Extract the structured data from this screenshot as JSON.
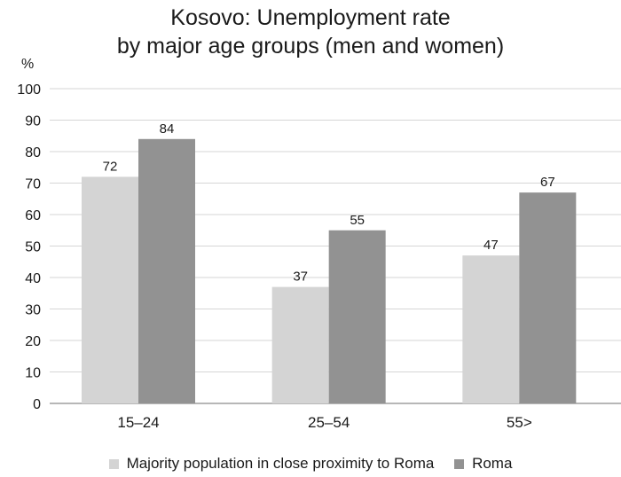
{
  "chart_data": {
    "type": "bar",
    "title_lines": [
      "Kosovo: Unemployment rate",
      "by major age groups (men and women)"
    ],
    "ylabel": "%",
    "ylim": [
      0,
      100
    ],
    "yticks": [
      0,
      10,
      20,
      30,
      40,
      50,
      60,
      70,
      80,
      90,
      100
    ],
    "categories": [
      "15–24",
      "25–54",
      "55>"
    ],
    "series": [
      {
        "name": "Majority population in close proximity to Roma",
        "values": [
          72,
          37,
          47
        ],
        "color": "#d4d4d4"
      },
      {
        "name": "Roma",
        "values": [
          84,
          55,
          67
        ],
        "color": "#929292"
      }
    ],
    "grid": true,
    "legend_position": "bottom"
  }
}
